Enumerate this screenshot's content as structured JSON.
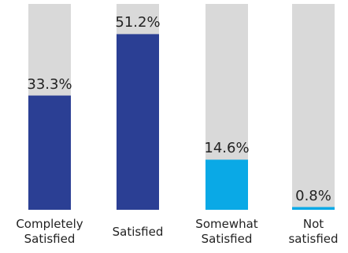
{
  "chart_data": {
    "type": "bar",
    "categories": [
      "Completely\nSatisfied",
      "Satisfied",
      "Somewhat\nSatisfied",
      "Not\nsatisfied"
    ],
    "values": [
      33.3,
      51.2,
      14.6,
      0.8
    ],
    "value_labels": [
      "33.3%",
      "51.2%",
      "14.6%",
      "0.8%"
    ],
    "colors": [
      "#2b3f94",
      "#2b3f94",
      "#0aa9e6",
      "#0aa9e6"
    ],
    "track_color": "#d9d9d9",
    "ylim": [
      0,
      60
    ]
  }
}
